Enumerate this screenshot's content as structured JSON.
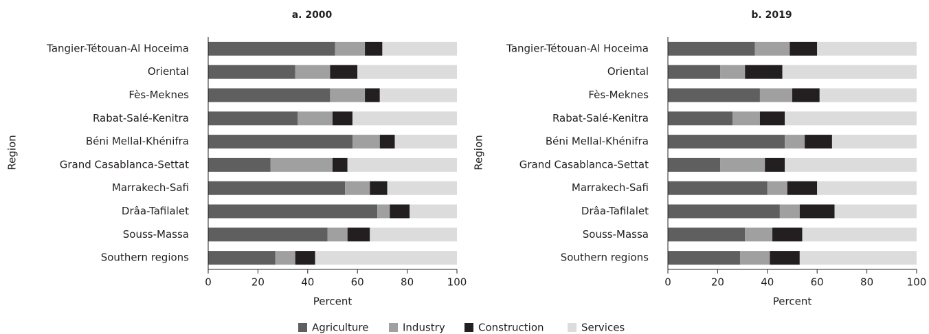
{
  "chart_data": [
    {
      "type": "bar",
      "orientation": "horizontal",
      "stacked": true,
      "title": "a. 2000",
      "xlabel": "Percent",
      "ylabel": "Region",
      "categories": [
        "Tangier-Tétouan-Al Hoceima",
        "Oriental",
        "Fès-Meknes",
        "Rabat-Salé-Kenitra",
        "Béni Mellal-Khénifra",
        "Grand Casablanca-Settat",
        "Marrakech-Safi",
        "Drâa-Tafilalet",
        "Souss-Massa",
        "Southern regions"
      ],
      "series": [
        {
          "name": "Agriculture",
          "color": "#5f5f5f",
          "values": [
            51,
            35,
            49,
            36,
            58,
            25,
            55,
            68,
            48,
            27
          ]
        },
        {
          "name": "Industry",
          "color": "#a0a0a0",
          "values": [
            12,
            14,
            14,
            14,
            11,
            25,
            10,
            5,
            8,
            8
          ]
        },
        {
          "name": "Construction",
          "color": "#231f20",
          "values": [
            7,
            11,
            6,
            8,
            6,
            6,
            7,
            8,
            9,
            8
          ]
        },
        {
          "name": "Services",
          "color": "#dcdcdd",
          "values": [
            30,
            40,
            31,
            42,
            25,
            44,
            28,
            19,
            35,
            57
          ]
        }
      ],
      "xlim": [
        0,
        100
      ],
      "xticks": [
        0,
        20,
        40,
        60,
        80,
        100
      ]
    },
    {
      "type": "bar",
      "orientation": "horizontal",
      "stacked": true,
      "title": "b. 2019",
      "xlabel": "Percent",
      "ylabel": "Region",
      "categories": [
        "Tangier-Tétouan-Al Hoceima",
        "Oriental",
        "Fès-Meknes",
        "Rabat-Salé-Kenitra",
        "Béni Mellal-Khénifra",
        "Grand Casablanca-Settat",
        "Marrakech-Safi",
        "Drâa-Tafilalet",
        "Souss-Massa",
        "Southern regions"
      ],
      "series": [
        {
          "color": "#5f5f5f",
          "values": [
            35,
            21,
            37,
            26,
            47,
            21,
            40,
            45,
            31,
            29
          ]
        },
        {
          "color": "#a0a0a0",
          "values": [
            14,
            10,
            13,
            11,
            8,
            18,
            8,
            8,
            11,
            12
          ]
        },
        {
          "color": "#231f20",
          "values": [
            11,
            15,
            11,
            10,
            11,
            8,
            12,
            14,
            12,
            12
          ]
        },
        {
          "color": "#dcdcdd",
          "values": [
            40,
            54,
            39,
            53,
            34,
            53,
            40,
            33,
            46,
            47
          ]
        }
      ],
      "xlim": [
        0,
        100
      ],
      "xticks": [
        0,
        20,
        40,
        60,
        80,
        100
      ]
    }
  ]
}
